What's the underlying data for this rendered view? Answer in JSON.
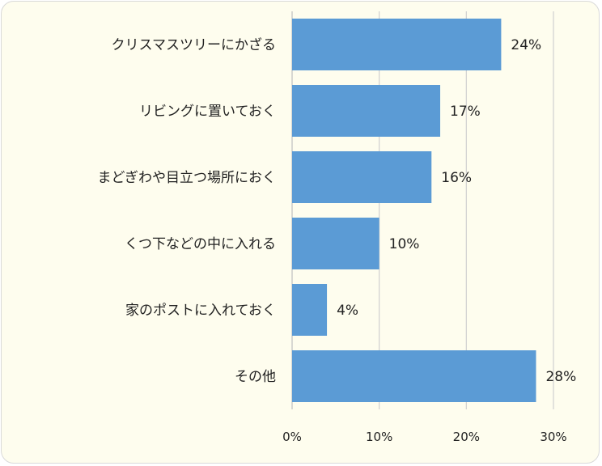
{
  "chart_data": {
    "type": "bar",
    "orientation": "horizontal",
    "title": "",
    "xlabel": "",
    "ylabel": "",
    "categories": [
      "クリスマスツリーにかざる",
      "リビングに置いておく",
      "まどぎわや目立つ場所におく",
      "くつ下などの中に入れる",
      "家のポストに入れておく",
      "その他"
    ],
    "values": [
      24,
      17,
      16,
      10,
      4,
      28
    ],
    "value_labels": [
      "24%",
      "17%",
      "16%",
      "10%",
      "4%",
      "28%"
    ],
    "xlim": [
      0,
      30
    ],
    "xticks": [
      0,
      10,
      20,
      30
    ],
    "xtick_labels": [
      "0%",
      "10%",
      "20%",
      "30%"
    ],
    "grid": "vertical",
    "legend": "none",
    "colors": {
      "bar": "#5b9bd5",
      "grid": "#d0d0d0",
      "background": "#fefdee",
      "text": "#222222"
    }
  }
}
